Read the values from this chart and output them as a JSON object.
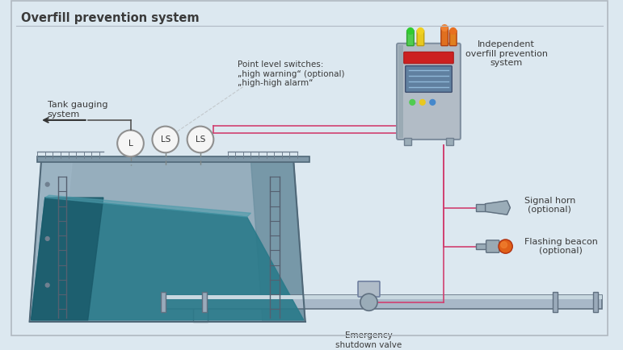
{
  "title": "Overfill prevention system",
  "bg_color": "#dce8f0",
  "labels": {
    "tank_gauging": "Tank gauging\nsystem",
    "point_level": "Point level switches:\n„high warning“ (optional)\n„high-high alarm“",
    "independent": "Independent\noverfill prevention\nsystem",
    "signal_horn": "Signal horn\n(optional)",
    "flashing_beacon": "Flashing beacon\n(optional)",
    "emergency_shutdown": "Emergency\nshutdown valve"
  },
  "colors": {
    "tank_outer": "#8fa8b8",
    "tank_mid": "#6a8fa0",
    "tank_liquid_top": "#4a9aaa",
    "tank_liquid_mid": "#2a7a8a",
    "tank_liquid_dark": "#1a5a6a",
    "tank_steel": "#a0b8c8",
    "tank_shadow": "#506878",
    "pipe_color": "#a8b8c8",
    "pipe_dark": "#8098a8",
    "pipe_edge": "#607080",
    "control_box_body": "#aab4be",
    "control_box_edge": "#808898",
    "wire_color": "#d04070",
    "instrument_circle": "#f5f5f5",
    "instrument_border": "#909090",
    "text_color": "#3a3a3a",
    "green_light": "#50cc50",
    "yellow_light": "#e8c820",
    "orange_light": "#e07020",
    "red_alarm": "#cc2020",
    "beacon_orange": "#e06018"
  }
}
